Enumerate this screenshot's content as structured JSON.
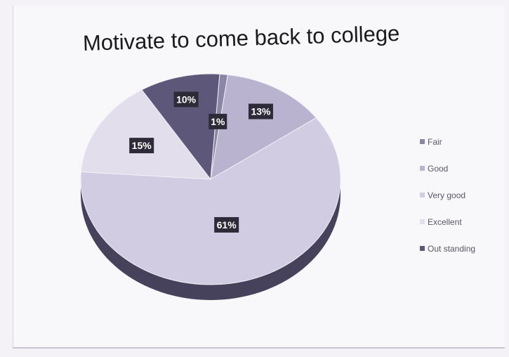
{
  "chart_data": {
    "type": "pie",
    "title": "Motivate to come back to college",
    "categories": [
      "Fair",
      "Good",
      "Very good",
      "Excellent",
      "Out standing"
    ],
    "values": [
      1,
      13,
      61,
      15,
      10
    ],
    "data_labels": [
      "1%",
      "13%",
      "61%",
      "15%",
      "10%"
    ],
    "colors": [
      "#8a86a6",
      "#b9b3cf",
      "#d2cce2",
      "#e2deec",
      "#5d587a"
    ],
    "legend": {
      "position": "right",
      "entries": [
        "Fair",
        "Good",
        "Very good",
        "Excellent",
        "Out standing"
      ]
    },
    "style": "3d"
  }
}
